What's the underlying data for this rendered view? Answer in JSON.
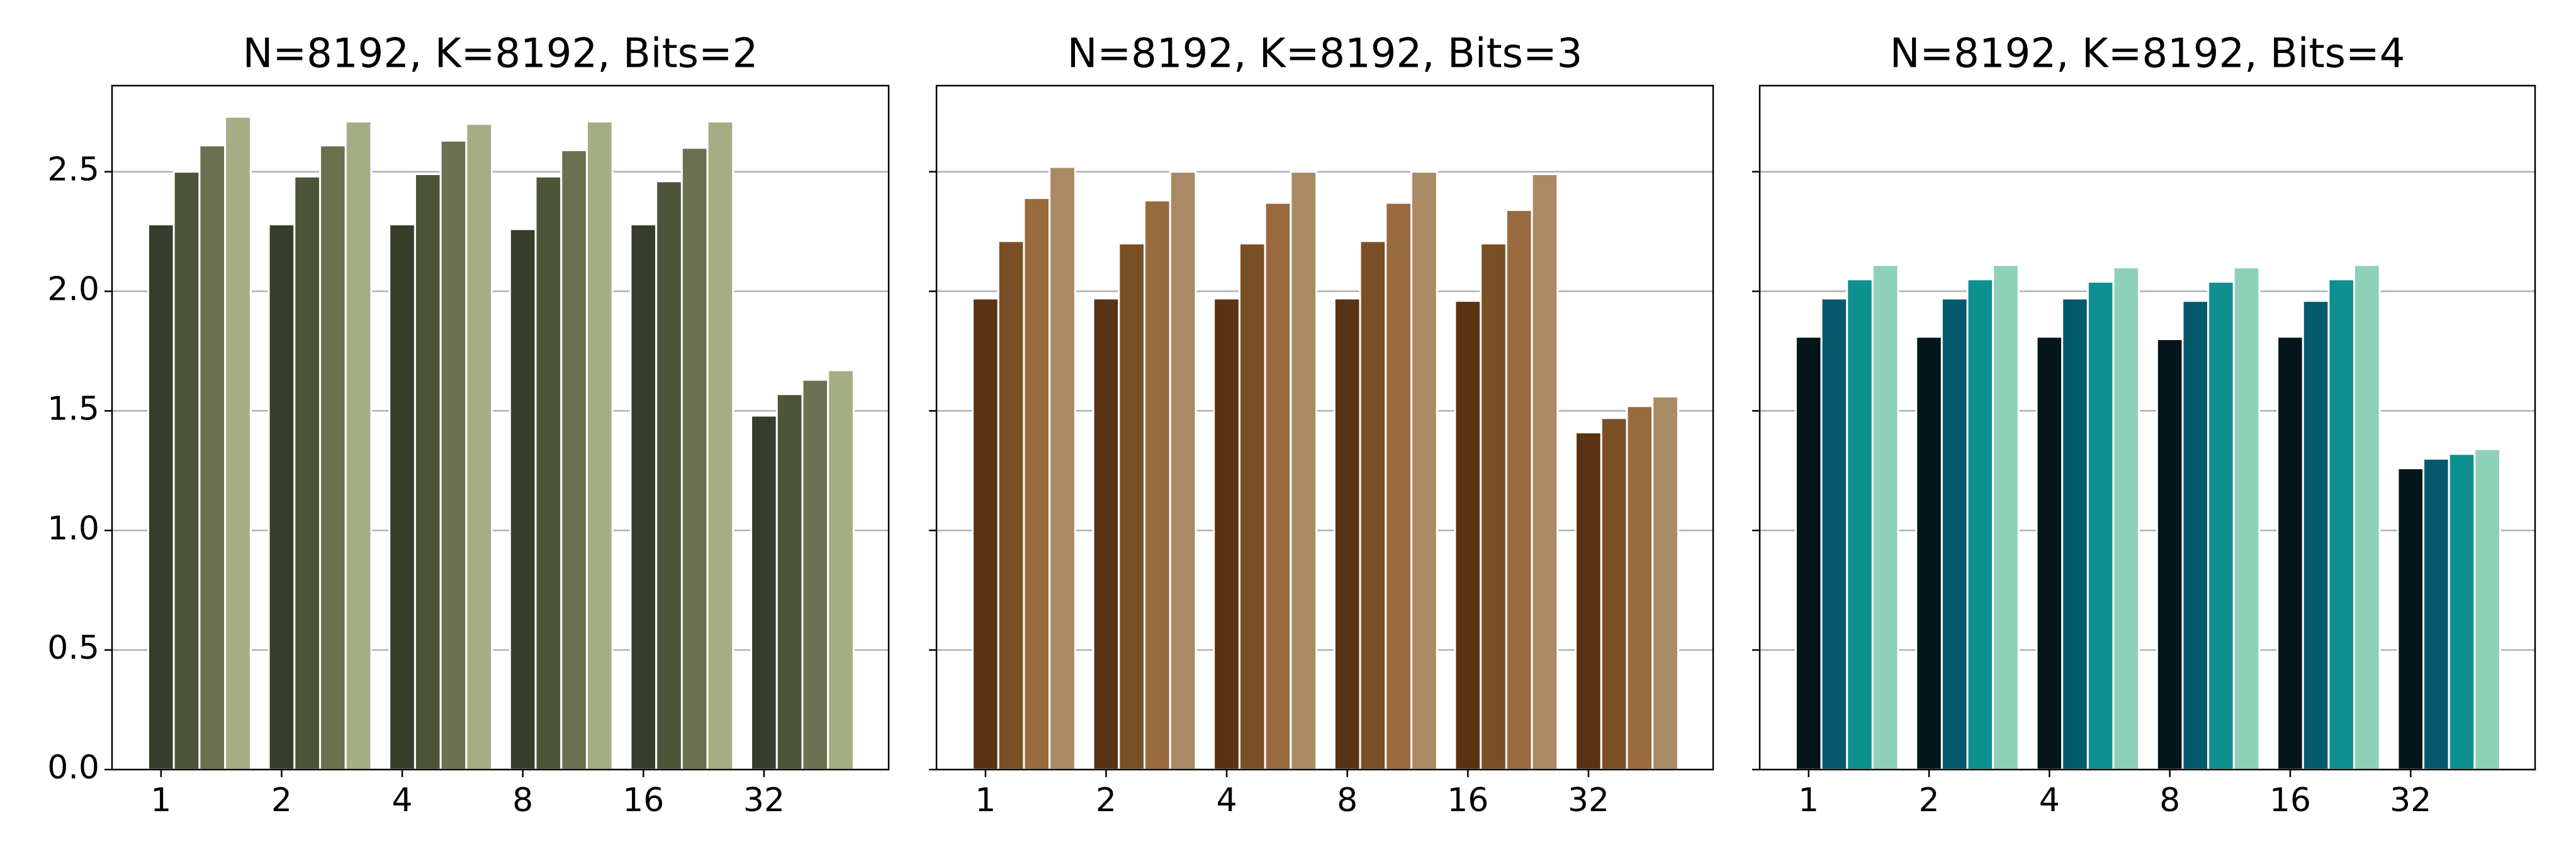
{
  "chart_data": [
    {
      "type": "bar",
      "title": "N=8192, K=8192, Bits=2",
      "categories": [
        "1",
        "2",
        "4",
        "8",
        "16",
        "32"
      ],
      "series": [
        {
          "color": "#363d2b",
          "values": [
            2.28,
            2.28,
            2.28,
            2.26,
            2.28,
            1.48
          ]
        },
        {
          "color": "#4c5537",
          "values": [
            2.5,
            2.48,
            2.49,
            2.48,
            2.46,
            1.57
          ]
        },
        {
          "color": "#6b7150",
          "values": [
            2.61,
            2.61,
            2.63,
            2.59,
            2.6,
            1.63
          ]
        },
        {
          "color": "#a5ad85",
          "values": [
            2.73,
            2.71,
            2.7,
            2.71,
            2.71,
            1.67
          ]
        }
      ],
      "ylim": [
        0,
        2.86
      ],
      "yticks": [
        {
          "value": 0,
          "label": "0.0"
        },
        0.5,
        {
          "value": 1,
          "label": "1.0"
        },
        1.5,
        {
          "value": 2,
          "label": "2.0"
        },
        2.5
      ],
      "ytick_labels": true,
      "grid": true
    },
    {
      "type": "bar",
      "title": "N=8192, K=8192, Bits=3",
      "categories": [
        "1",
        "2",
        "4",
        "8",
        "16",
        "32"
      ],
      "series": [
        {
          "color": "#5a3214",
          "values": [
            1.97,
            1.97,
            1.97,
            1.97,
            1.96,
            1.41
          ]
        },
        {
          "color": "#7b4f26",
          "values": [
            2.21,
            2.2,
            2.2,
            2.21,
            2.2,
            1.47
          ]
        },
        {
          "color": "#9a6a3f",
          "values": [
            2.39,
            2.38,
            2.37,
            2.37,
            2.34,
            1.52
          ]
        },
        {
          "color": "#a98a65",
          "values": [
            2.52,
            2.5,
            2.5,
            2.5,
            2.49,
            1.56
          ]
        }
      ],
      "ylim": [
        0,
        2.86
      ],
      "yticks": [
        0,
        0.5,
        1,
        1.5,
        2,
        2.5
      ],
      "ytick_labels": false,
      "grid": true
    },
    {
      "type": "bar",
      "title": "N=8192, K=8192, Bits=4",
      "categories": [
        "1",
        "2",
        "4",
        "8",
        "16",
        "32"
      ],
      "series": [
        {
          "color": "#04151c",
          "values": [
            1.81,
            1.81,
            1.81,
            1.8,
            1.81,
            1.26
          ]
        },
        {
          "color": "#045a6c",
          "values": [
            1.97,
            1.97,
            1.97,
            1.96,
            1.96,
            1.3
          ]
        },
        {
          "color": "#0f9090",
          "values": [
            2.05,
            2.05,
            2.04,
            2.04,
            2.05,
            1.32
          ]
        },
        {
          "color": "#8fd1b8",
          "values": [
            2.11,
            2.11,
            2.1,
            2.1,
            2.11,
            1.34
          ]
        }
      ],
      "ylim": [
        0,
        2.86
      ],
      "yticks": [
        0,
        0.5,
        1,
        1.5,
        2,
        2.5
      ],
      "ytick_labels": false,
      "grid": true
    }
  ]
}
